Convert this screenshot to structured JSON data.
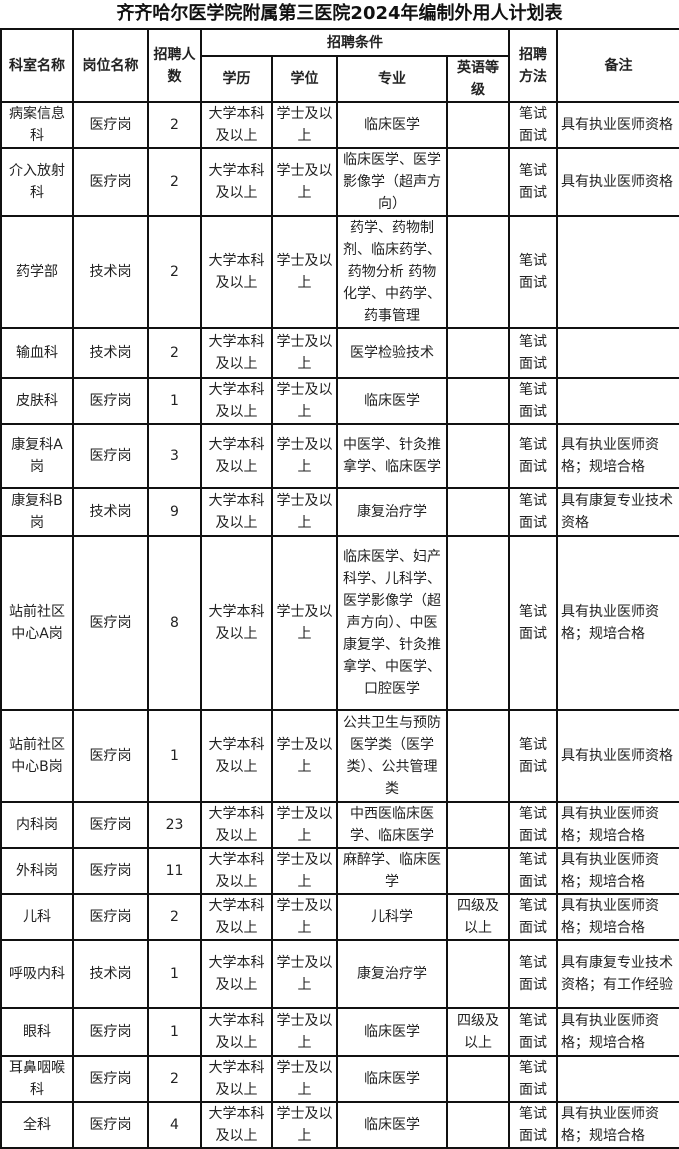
{
  "title": "齐齐哈尔医学院附属第三医院2024年编制外用人计划表",
  "headers": {
    "department": "科室名称",
    "position": "岗位名称",
    "count": "招聘人数",
    "conditions": "招聘条件",
    "education": "学历",
    "degree": "学位",
    "major": "专业",
    "english": "英语等级",
    "method": "招聘方法",
    "remarks": "备注"
  },
  "rows": [
    {
      "department": "病案信息科",
      "position": "医疗岗",
      "count": "2",
      "education": "大学本科及以上",
      "degree": "学士及以上",
      "major": "临床医学",
      "english": "",
      "method": "笔试面试",
      "remarks": "具有执业医师资格"
    },
    {
      "department": "介入放射科",
      "position": "医疗岗",
      "count": "2",
      "education": "大学本科及以上",
      "degree": "学士及以上",
      "major": "临床医学、医学影像学（超声方向）",
      "english": "",
      "method": "笔试面试",
      "remarks": "具有执业医师资格"
    },
    {
      "department": "药学部",
      "position": "技术岗",
      "count": "2",
      "education": "大学本科及以上",
      "degree": "学士及以上",
      "major": "药学、药物制剂、临床药学、药物分析 药物化学、中药学、药事管理",
      "english": "",
      "method": "笔试面试",
      "remarks": ""
    },
    {
      "department": "输血科",
      "position": "技术岗",
      "count": "2",
      "education": "大学本科及以上",
      "degree": "学士及以上",
      "major": "医学检验技术",
      "english": "",
      "method": "笔试面试",
      "remarks": ""
    },
    {
      "department": "皮肤科",
      "position": "医疗岗",
      "count": "1",
      "education": "大学本科及以上",
      "degree": "学士及以上",
      "major": "临床医学",
      "english": "",
      "method": "笔试面试",
      "remarks": ""
    },
    {
      "department": "康复科A岗",
      "position": "医疗岗",
      "count": "3",
      "education": "大学本科及以上",
      "degree": "学士及以上",
      "major": "中医学、针灸推拿学、临床医学",
      "english": "",
      "method": "笔试面试",
      "remarks": "具有执业医师资格；规培合格"
    },
    {
      "department": "康复科B岗",
      "position": "技术岗",
      "count": "9",
      "education": "大学本科及以上",
      "degree": "学士及以上",
      "major": "康复治疗学",
      "english": "",
      "method": "笔试面试",
      "remarks": "具有康复专业技术资格"
    },
    {
      "department": "站前社区中心A岗",
      "position": "医疗岗",
      "count": "8",
      "education": "大学本科及以上",
      "degree": "学士及以上",
      "major": "临床医学、妇产科学、儿科学、医学影像学（超声方向）、中医康复学、针灸推拿学、中医学、口腔医学",
      "english": "",
      "method": "笔试面试",
      "remarks": "具有执业医师资格；规培合格"
    },
    {
      "department": "站前社区中心B岗",
      "position": "医疗岗",
      "count": "1",
      "education": "大学本科及以上",
      "degree": "学士及以上",
      "major": "公共卫生与预防医学类（医学类）、公共管理类",
      "english": "",
      "method": "笔试面试",
      "remarks": "具有执业医师资格"
    },
    {
      "department": "内科岗",
      "position": "医疗岗",
      "count": "23",
      "education": "大学本科及以上",
      "degree": "学士及以上",
      "major": "中西医临床医学、临床医学",
      "english": "",
      "method": "笔试面试",
      "remarks": "具有执业医师资格；规培合格"
    },
    {
      "department": "外科岗",
      "position": "医疗岗",
      "count": "11",
      "education": "大学本科及以上",
      "degree": "学士及以上",
      "major": "麻醉学、临床医学",
      "english": "",
      "method": "笔试面试",
      "remarks": "具有执业医师资格；规培合格"
    },
    {
      "department": "儿科",
      "position": "医疗岗",
      "count": "2",
      "education": "大学本科及以上",
      "degree": "学士及以上",
      "major": "儿科学",
      "english": "四级及以上",
      "method": "笔试面试",
      "remarks": "具有执业医师资格；规培合格"
    },
    {
      "department": "呼吸内科",
      "position": "技术岗",
      "count": "1",
      "education": "大学本科及以上",
      "degree": "学士及以上",
      "major": "康复治疗学",
      "english": "",
      "method": "笔试面试",
      "remarks": "具有康复专业技术资格；有工作经验"
    },
    {
      "department": "眼科",
      "position": "医疗岗",
      "count": "1",
      "education": "大学本科及以上",
      "degree": "学士及以上",
      "major": "临床医学",
      "english": "四级及以上",
      "method": "笔试面试",
      "remarks": "具有执业医师资格；规培合格"
    },
    {
      "department": "耳鼻咽喉科",
      "position": "医疗岗",
      "count": "2",
      "education": "大学本科及以上",
      "degree": "学士及以上",
      "major": "临床医学",
      "english": "",
      "method": "笔试面试",
      "remarks": ""
    },
    {
      "department": "全科",
      "position": "医疗岗",
      "count": "4",
      "education": "大学本科及以上",
      "degree": "学士及以上",
      "major": "临床医学",
      "english": "",
      "method": "笔试面试",
      "remarks": "具有执业医师资格；规培合格"
    }
  ]
}
